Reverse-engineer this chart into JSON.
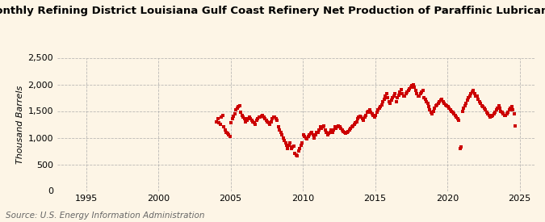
{
  "title": "Monthly Refining District Louisiana Gulf Coast Refinery Net Production of Paraffinic Lubricants",
  "ylabel": "Thousand Barrels",
  "source": "Source: U.S. Energy Information Administration",
  "background_color": "#fdf5e6",
  "plot_bg_color": "#fdf5e6",
  "dot_color": "#cc0000",
  "grid_color": "#aaaaaa",
  "ylim": [
    0,
    2500
  ],
  "yticks": [
    0,
    500,
    1000,
    1500,
    2000,
    2500
  ],
  "ytick_labels": [
    "0",
    "500",
    "1,000",
    "1,500",
    "2,000",
    "2,500"
  ],
  "xmin": 1993.0,
  "xmax": 2026.0,
  "xticks": [
    1995,
    2000,
    2005,
    2010,
    2015,
    2020,
    2025
  ],
  "data_years": [
    2004,
    2004,
    2004,
    2004,
    2004,
    2004,
    2004,
    2004,
    2004,
    2004,
    2004,
    2004,
    2005,
    2005,
    2005,
    2005,
    2005,
    2005,
    2005,
    2005,
    2005,
    2005,
    2005,
    2005,
    2006,
    2006,
    2006,
    2006,
    2006,
    2006,
    2006,
    2006,
    2006,
    2006,
    2006,
    2006,
    2007,
    2007,
    2007,
    2007,
    2007,
    2007,
    2007,
    2007,
    2007,
    2007,
    2007,
    2007,
    2008,
    2008,
    2008,
    2008,
    2008,
    2008,
    2008,
    2008,
    2008,
    2008,
    2008,
    2008,
    2009,
    2009,
    2009,
    2009,
    2009,
    2009,
    2009,
    2009,
    2009,
    2009,
    2009,
    2009,
    2010,
    2010,
    2010,
    2010,
    2010,
    2010,
    2010,
    2010,
    2010,
    2010,
    2010,
    2010,
    2011,
    2011,
    2011,
    2011,
    2011,
    2011,
    2011,
    2011,
    2011,
    2011,
    2011,
    2011,
    2012,
    2012,
    2012,
    2012,
    2012,
    2012,
    2012,
    2012,
    2012,
    2012,
    2012,
    2012,
    2013,
    2013,
    2013,
    2013,
    2013,
    2013,
    2013,
    2013,
    2013,
    2013,
    2013,
    2013,
    2014,
    2014,
    2014,
    2014,
    2014,
    2014,
    2014,
    2014,
    2014,
    2014,
    2014,
    2014,
    2015,
    2015,
    2015,
    2015,
    2015,
    2015,
    2015,
    2015,
    2015,
    2015,
    2015,
    2015,
    2016,
    2016,
    2016,
    2016,
    2016,
    2016,
    2016,
    2016,
    2016,
    2016,
    2016,
    2016,
    2017,
    2017,
    2017,
    2017,
    2017,
    2017,
    2017,
    2017,
    2017,
    2017,
    2017,
    2017,
    2018,
    2018,
    2018,
    2018,
    2018,
    2018,
    2018,
    2018,
    2018,
    2018,
    2018,
    2018,
    2019,
    2019,
    2019,
    2019,
    2019,
    2019,
    2019,
    2019,
    2019,
    2019,
    2019,
    2019,
    2020,
    2020,
    2020,
    2020,
    2020,
    2020,
    2020,
    2020,
    2020,
    2020,
    2020,
    2020,
    2021,
    2021,
    2021,
    2021,
    2021,
    2021,
    2021,
    2021,
    2021,
    2021,
    2021,
    2021,
    2022,
    2022,
    2022,
    2022,
    2022,
    2022,
    2022,
    2022,
    2022,
    2022,
    2022,
    2022,
    2023,
    2023,
    2023,
    2023,
    2023,
    2023,
    2023,
    2023,
    2023,
    2023,
    2023,
    2023,
    2024,
    2024,
    2024,
    2024,
    2024,
    2024,
    2024,
    2024,
    2024
  ],
  "data_months": [
    1,
    2,
    3,
    4,
    5,
    6,
    7,
    8,
    9,
    10,
    11,
    12,
    1,
    2,
    3,
    4,
    5,
    6,
    7,
    8,
    9,
    10,
    11,
    12,
    1,
    2,
    3,
    4,
    5,
    6,
    7,
    8,
    9,
    10,
    11,
    12,
    1,
    2,
    3,
    4,
    5,
    6,
    7,
    8,
    9,
    10,
    11,
    12,
    1,
    2,
    3,
    4,
    5,
    6,
    7,
    8,
    9,
    10,
    11,
    12,
    1,
    2,
    3,
    4,
    5,
    6,
    7,
    8,
    9,
    10,
    11,
    12,
    1,
    2,
    3,
    4,
    5,
    6,
    7,
    8,
    9,
    10,
    11,
    12,
    1,
    2,
    3,
    4,
    5,
    6,
    7,
    8,
    9,
    10,
    11,
    12,
    1,
    2,
    3,
    4,
    5,
    6,
    7,
    8,
    9,
    10,
    11,
    12,
    1,
    2,
    3,
    4,
    5,
    6,
    7,
    8,
    9,
    10,
    11,
    12,
    1,
    2,
    3,
    4,
    5,
    6,
    7,
    8,
    9,
    10,
    11,
    12,
    1,
    2,
    3,
    4,
    5,
    6,
    7,
    8,
    9,
    10,
    11,
    12,
    1,
    2,
    3,
    4,
    5,
    6,
    7,
    8,
    9,
    10,
    11,
    12,
    1,
    2,
    3,
    4,
    5,
    6,
    7,
    8,
    9,
    10,
    11,
    12,
    1,
    2,
    3,
    4,
    5,
    6,
    7,
    8,
    9,
    10,
    11,
    12,
    1,
    2,
    3,
    4,
    5,
    6,
    7,
    8,
    9,
    10,
    11,
    12,
    1,
    2,
    3,
    4,
    5,
    6,
    7,
    8,
    9,
    10,
    11,
    12,
    1,
    2,
    3,
    4,
    5,
    6,
    7,
    8,
    9,
    10,
    11,
    12,
    1,
    2,
    3,
    4,
    5,
    6,
    7,
    8,
    9,
    10,
    11,
    12,
    1,
    2,
    3,
    4,
    5,
    6,
    7,
    8,
    9,
    10,
    11,
    12,
    1,
    2,
    3,
    4,
    5,
    6,
    7,
    8,
    9
  ],
  "values": [
    1300,
    1350,
    1280,
    1250,
    1380,
    1420,
    1200,
    1150,
    1100,
    1080,
    1050,
    1020,
    1280,
    1350,
    1400,
    1450,
    1520,
    1550,
    1580,
    1600,
    1480,
    1420,
    1380,
    1350,
    1300,
    1320,
    1350,
    1380,
    1350,
    1320,
    1300,
    1280,
    1250,
    1320,
    1350,
    1380,
    1380,
    1400,
    1420,
    1380,
    1350,
    1320,
    1300,
    1280,
    1250,
    1300,
    1350,
    1380,
    1380,
    1350,
    1320,
    1200,
    1150,
    1100,
    1050,
    1000,
    950,
    900,
    850,
    800,
    850,
    900,
    800,
    820,
    840,
    700,
    680,
    660,
    750,
    800,
    850,
    900,
    1050,
    1020,
    1000,
    980,
    1020,
    1050,
    1080,
    1100,
    1050,
    1000,
    1050,
    1100,
    1100,
    1150,
    1200,
    1180,
    1200,
    1220,
    1150,
    1100,
    1050,
    1080,
    1100,
    1150,
    1100,
    1150,
    1200,
    1180,
    1200,
    1220,
    1200,
    1180,
    1150,
    1120,
    1100,
    1080,
    1100,
    1120,
    1150,
    1180,
    1200,
    1220,
    1250,
    1280,
    1300,
    1350,
    1380,
    1400,
    1380,
    1350,
    1320,
    1380,
    1420,
    1480,
    1500,
    1520,
    1480,
    1450,
    1420,
    1380,
    1420,
    1480,
    1520,
    1550,
    1580,
    1620,
    1680,
    1720,
    1780,
    1820,
    1750,
    1680,
    1650,
    1700,
    1750,
    1780,
    1820,
    1680,
    1750,
    1800,
    1850,
    1900,
    1820,
    1780,
    1780,
    1820,
    1850,
    1880,
    1920,
    1950,
    1980,
    2000,
    1950,
    1880,
    1820,
    1780,
    1780,
    1820,
    1850,
    1880,
    1750,
    1720,
    1680,
    1650,
    1580,
    1520,
    1480,
    1450,
    1500,
    1550,
    1600,
    1620,
    1650,
    1680,
    1700,
    1720,
    1680,
    1650,
    1620,
    1600,
    1580,
    1550,
    1520,
    1500,
    1480,
    1450,
    1420,
    1380,
    1350,
    1320,
    800,
    820,
    1500,
    1550,
    1600,
    1650,
    1700,
    1750,
    1780,
    1820,
    1850,
    1880,
    1820,
    1780,
    1780,
    1720,
    1680,
    1650,
    1600,
    1580,
    1550,
    1520,
    1480,
    1450,
    1420,
    1380,
    1400,
    1420,
    1450,
    1480,
    1520,
    1550,
    1600,
    1550,
    1500,
    1480,
    1450,
    1420,
    1420,
    1450,
    1480,
    1520,
    1550,
    1580,
    1520,
    1450,
    1220
  ],
  "title_fontsize": 9.5,
  "axis_fontsize": 8,
  "source_fontsize": 7.5,
  "marker_size": 12
}
